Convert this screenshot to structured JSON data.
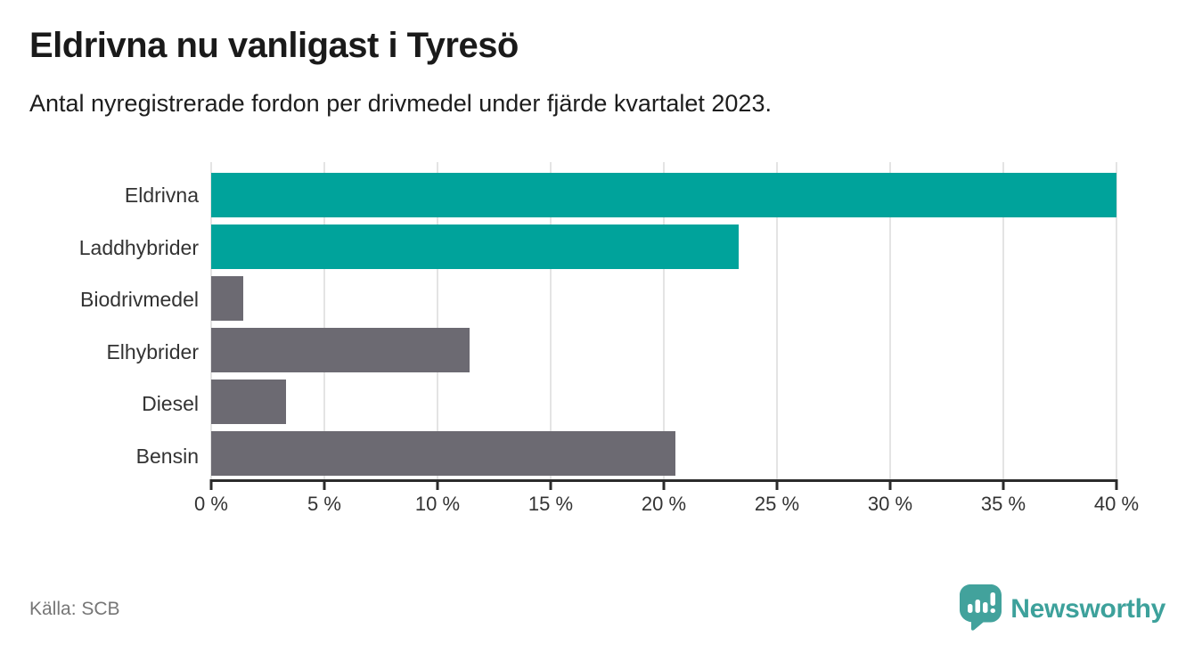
{
  "page": {
    "title": "Eldrivna nu vanligast i Tyresö",
    "subtitle": "Antal nyregistrerade fordon per drivmedel under fjärde kvartalet 2023."
  },
  "chart_data": {
    "type": "bar",
    "orientation": "horizontal",
    "title": "Eldrivna nu vanligast i Tyresö",
    "subtitle": "Antal nyregistrerade fordon per drivmedel under fjärde kvartalet 2023.",
    "xlabel": "",
    "ylabel": "",
    "unit": "%",
    "xlim": [
      0,
      40
    ],
    "grid": "vertical-gridlines-on",
    "legend": "none",
    "value_labels": "none",
    "categories": [
      "Eldrivna",
      "Laddhybrider",
      "Biodrivmedel",
      "Elhybrider",
      "Diesel",
      "Bensin"
    ],
    "values": [
      40.0,
      23.3,
      1.4,
      11.4,
      3.3,
      20.5
    ],
    "bar_colors": [
      "#00a39b",
      "#00a39b",
      "#6c6a72",
      "#6c6a72",
      "#6c6a72",
      "#6c6a72"
    ],
    "x_ticks": [
      0,
      5,
      10,
      15,
      20,
      25,
      30,
      35,
      40
    ],
    "x_tick_labels": [
      "0 %",
      "5 %",
      "10 %",
      "15 %",
      "20 %",
      "25 %",
      "30 %",
      "35 %",
      "40 %"
    ]
  },
  "footer": {
    "source": "Källa: SCB",
    "brand": "Newsworthy",
    "brand_icon": "newsworthy-speech-bubble-bar-chart-icon"
  },
  "colors": {
    "accent_teal": "#00a39b",
    "neutral_gray": "#6c6a72",
    "brand_teal": "#3da19b",
    "axis": "#2b2b2b",
    "gridline": "#e4e4e4",
    "text_dark": "#1a1a1a",
    "text_label": "#333333",
    "text_muted": "#767676"
  }
}
